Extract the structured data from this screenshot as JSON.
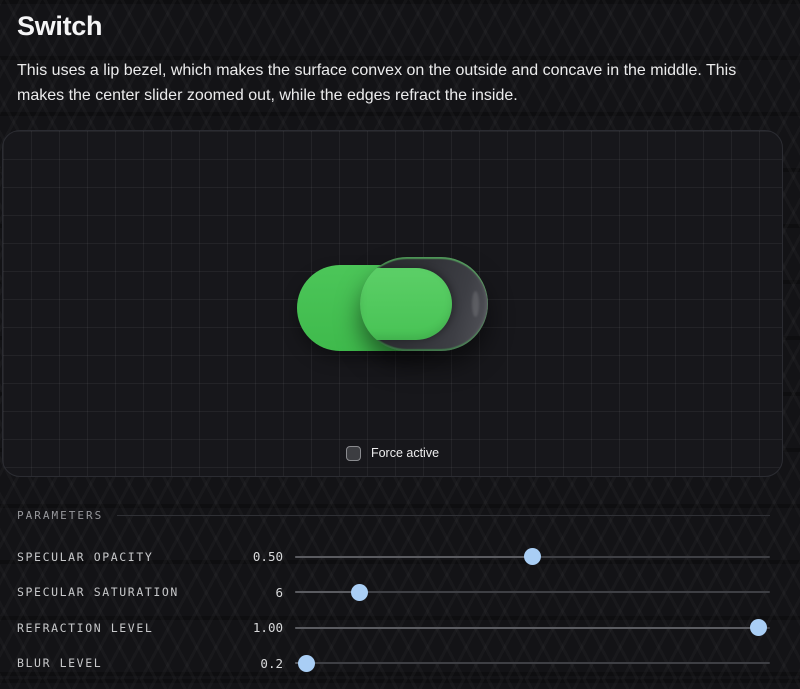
{
  "page": {
    "title": "Switch",
    "description": "This uses a lip bezel, which makes the surface convex on the outside and concave in the middle. This makes the center slider zoomed out, while the edges refract the inside."
  },
  "demo": {
    "switch_state": "on",
    "force_active": {
      "label": "Force active",
      "checked": false
    }
  },
  "parameters": {
    "heading": "PARAMETERS",
    "sliders": [
      {
        "label": "SPECULAR OPACITY",
        "value": "0.50",
        "pct": 50
      },
      {
        "label": "SPECULAR SATURATION",
        "value": "6",
        "pct": 13.5
      },
      {
        "label": "REFRACTION LEVEL",
        "value": "1.00",
        "pct": 97.5
      },
      {
        "label": "BLUR LEVEL",
        "value": "0.2",
        "pct": 2.5
      }
    ]
  },
  "colors": {
    "accent_green": "#47c554",
    "glass_rim_dark": "#2a2b2f",
    "slider_thumb_blue": "#a9cef5",
    "panel_background": "#17171b",
    "page_background": "#131316"
  }
}
